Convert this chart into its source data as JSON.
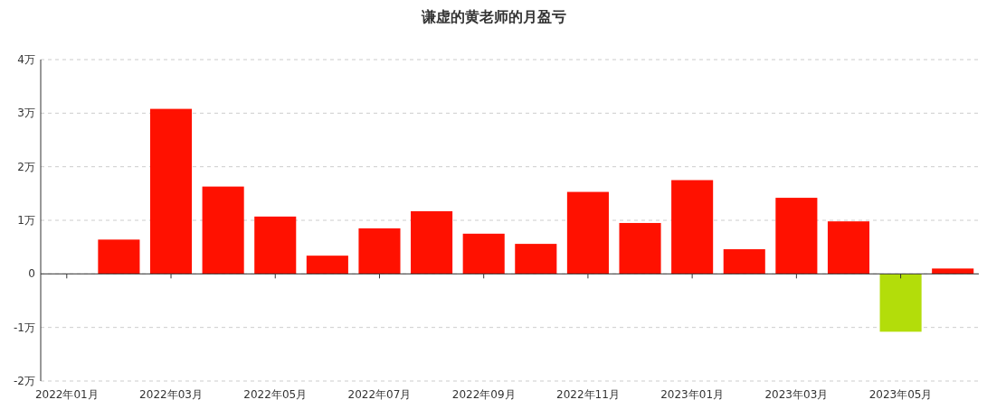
{
  "chart_data": {
    "type": "bar",
    "title": "谦虚的黄老师的月盈亏",
    "categories": [
      "2022年01月",
      null,
      "2022年03月",
      null,
      "2022年05月",
      null,
      "2022年07月",
      null,
      "2022年09月",
      null,
      "2022年11月",
      null,
      "2023年01月",
      null,
      "2023年03月",
      null,
      "2023年05月",
      null
    ],
    "values": [
      0,
      0.64,
      3.08,
      1.63,
      1.07,
      0.34,
      0.85,
      1.17,
      0.75,
      0.56,
      1.53,
      0.95,
      1.75,
      0.46,
      1.42,
      0.98,
      -1.08,
      0.1
    ],
    "colors": [
      "#ff1100",
      "#ff1100",
      "#ff1100",
      "#ff1100",
      "#ff1100",
      "#ff1100",
      "#ff1100",
      "#ff1100",
      "#ff1100",
      "#ff1100",
      "#ff1100",
      "#ff1100",
      "#ff1100",
      "#ff1100",
      "#ff1100",
      "#ff1100",
      "#b3dd0a",
      "#ff1100"
    ],
    "ylim": [
      -2,
      4
    ],
    "yticks": [
      {
        "value": -2,
        "label": "-2万"
      },
      {
        "value": -1,
        "label": "-1万"
      },
      0,
      {
        "value": 1,
        "label": "1万"
      },
      {
        "value": 2,
        "label": "2万"
      },
      {
        "value": 3,
        "label": "3万"
      },
      {
        "value": 4,
        "label": "4万"
      }
    ],
    "grid": "y"
  }
}
